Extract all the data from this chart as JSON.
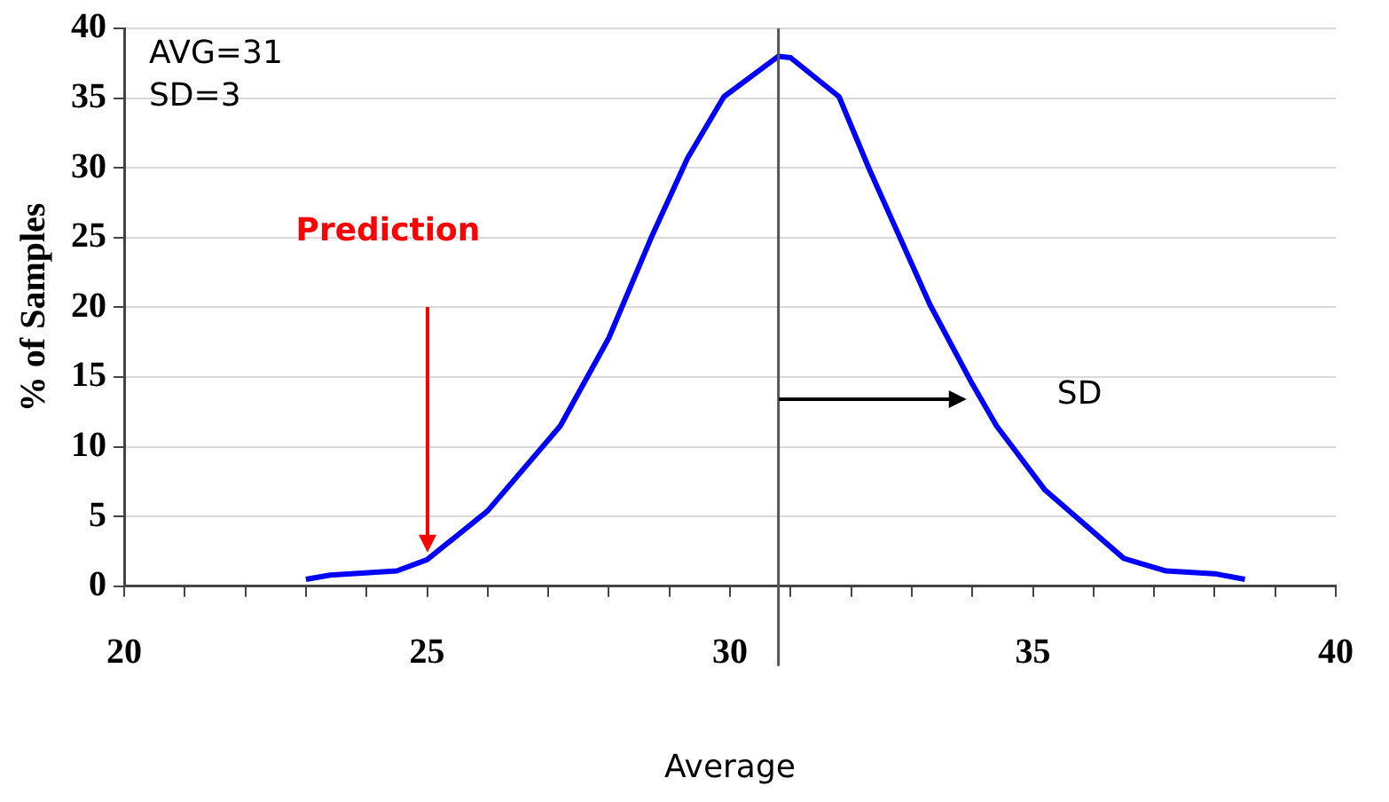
{
  "chart_data": {
    "type": "line",
    "xlabel": "Average",
    "ylabel": "% of Samples",
    "xlim": [
      20,
      40
    ],
    "xticks": [
      20,
      {
        "value": 21,
        "label": null
      },
      {
        "value": 22,
        "label": null
      },
      {
        "value": 23,
        "label": null
      },
      {
        "value": 24,
        "label": null
      },
      25,
      {
        "value": 26,
        "label": null
      },
      {
        "value": 27,
        "label": null
      },
      {
        "value": 28,
        "label": null
      },
      {
        "value": 29,
        "label": null
      },
      30,
      {
        "value": 31,
        "label": null
      },
      {
        "value": 32,
        "label": null
      },
      {
        "value": 33,
        "label": null
      },
      {
        "value": 34,
        "label": null
      },
      35,
      {
        "value": 36,
        "label": null
      },
      {
        "value": 37,
        "label": null
      },
      {
        "value": 38,
        "label": null
      },
      {
        "value": 39,
        "label": null
      },
      40
    ],
    "ylim": [
      0,
      40
    ],
    "yticks": [
      0,
      5,
      10,
      15,
      20,
      25,
      30,
      35,
      40
    ],
    "grid": "y",
    "marker": "none",
    "line_style": "solid",
    "series": [
      {
        "color": "#0000ff",
        "x": [
          23.0,
          23.4,
          24.5,
          25.0,
          26.0,
          27.2,
          28.0,
          28.7,
          29.3,
          29.9,
          30.8,
          31.0,
          31.8,
          32.3,
          33.3,
          34.0,
          34.4,
          35.2,
          36.5,
          37.2,
          38.0,
          38.5
        ],
        "values": [
          0.5,
          0.8,
          1.1,
          1.9,
          5.4,
          11.5,
          17.8,
          25.0,
          30.7,
          35.1,
          38.0,
          37.9,
          35.1,
          29.9,
          20.2,
          14.5,
          11.5,
          6.9,
          2.0,
          1.1,
          0.9,
          0.5
        ]
      }
    ],
    "ref_lines": [
      {
        "axis": "x",
        "value": 30.8,
        "color": "#555555"
      }
    ],
    "annotations": [
      "AVG=31",
      "SD=3",
      "Prediction",
      "SD"
    ]
  }
}
